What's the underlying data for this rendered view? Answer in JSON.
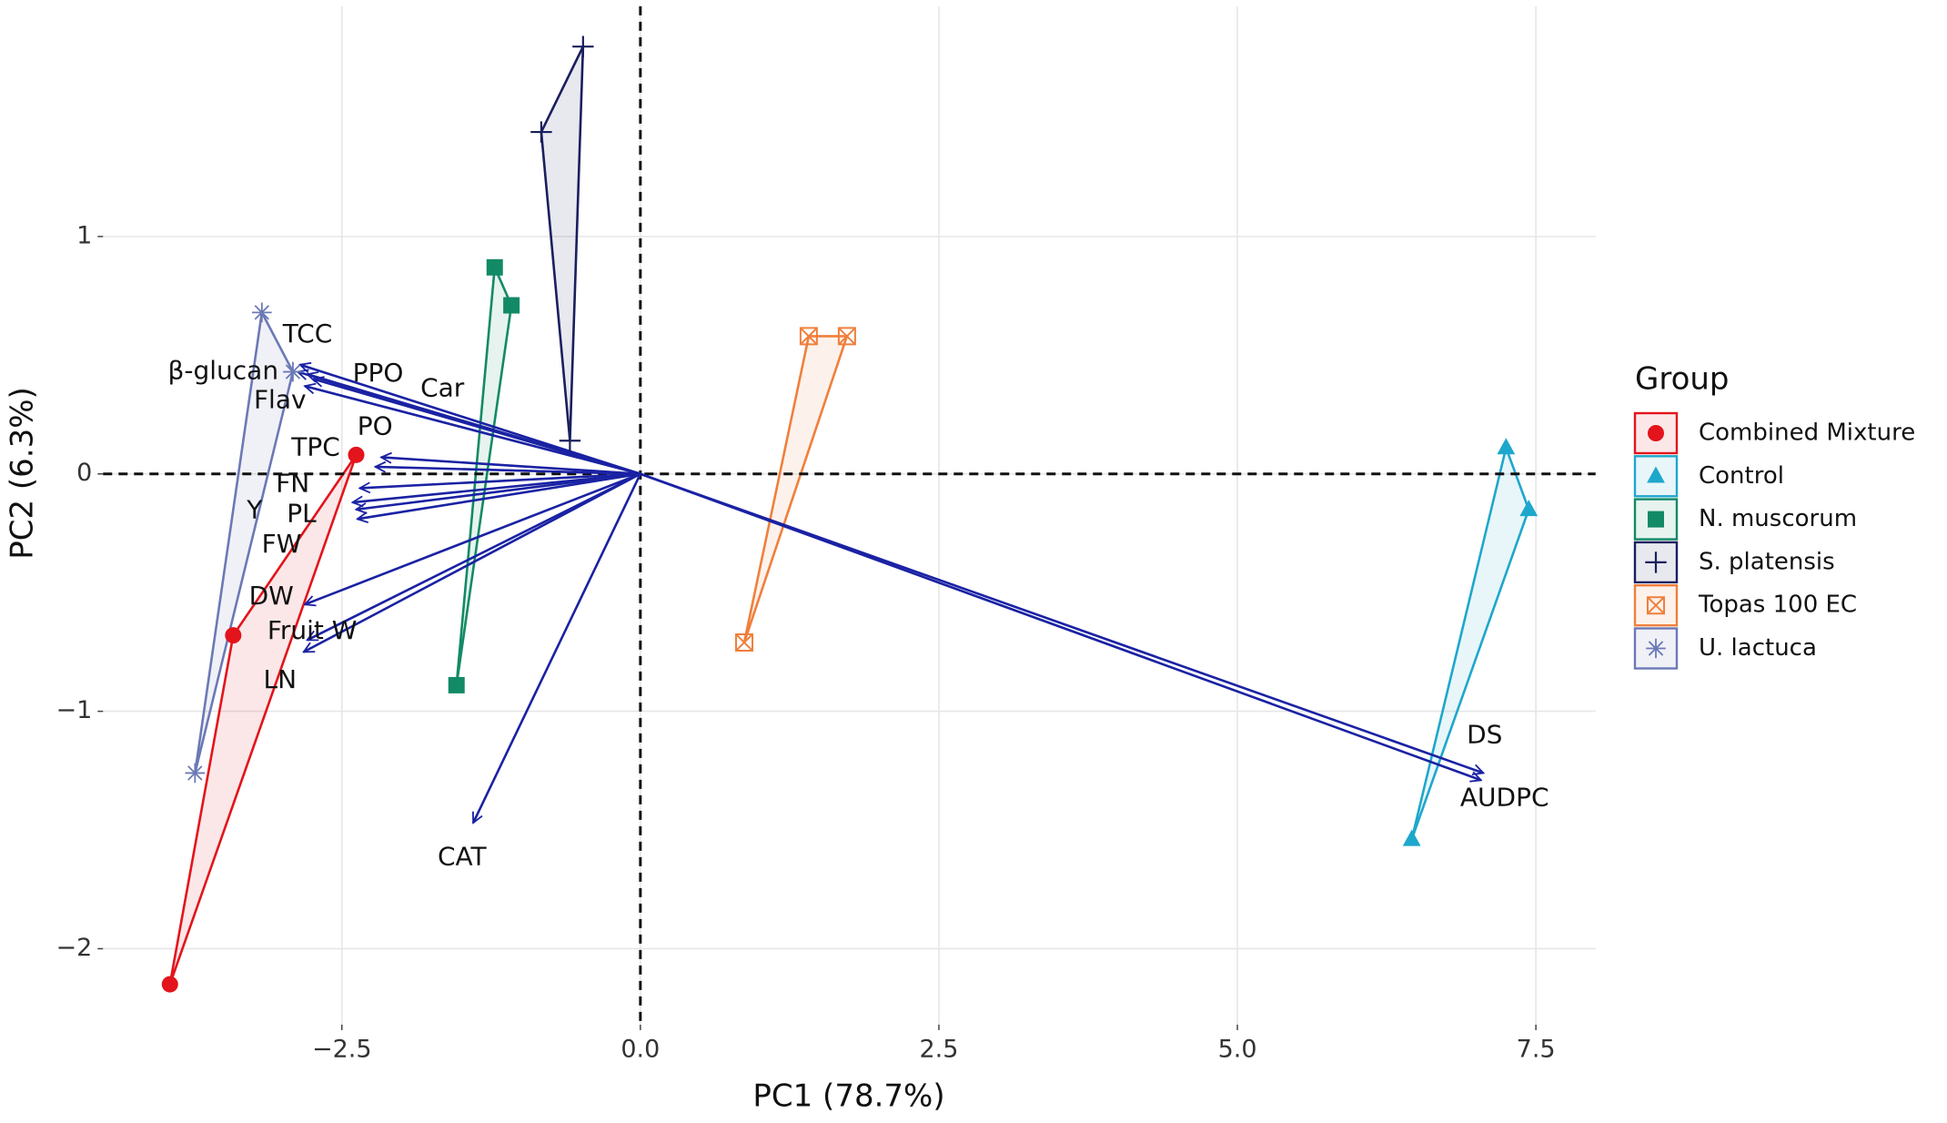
{
  "chart_data": {
    "type": "biplot",
    "x_label": "PC1 (78.7%)",
    "y_label": "PC2 (6.3%)",
    "xlim": [
      -4.5,
      8.0
    ],
    "ylim": [
      -2.32,
      1.97
    ],
    "xticks": [
      {
        "value": -2.5,
        "label": "−2.5"
      },
      {
        "value": 0,
        "label": "0.0"
      },
      2.5,
      {
        "value": 5,
        "label": "5.0"
      },
      7.5
    ],
    "yticks": [
      {
        "value": -2,
        "label": "−2"
      },
      {
        "value": -1,
        "label": "−1"
      },
      0,
      1
    ],
    "grid": true,
    "reference_lines": {
      "x": 0,
      "y": 0
    },
    "legend_title": "Group",
    "legend_position": "right",
    "loading_color": "#1a22a3",
    "series": [
      {
        "name": "Combined Mixture",
        "color": "#e3141b",
        "marker": "circle",
        "x": [
          -2.38,
          -3.41,
          -3.94
        ],
        "y": [
          0.08,
          -0.68,
          -2.15
        ]
      },
      {
        "name": "Control",
        "color": "#1ea7cc",
        "marker": "triangle",
        "x": [
          7.25,
          7.44,
          6.46
        ],
        "y": [
          0.11,
          -0.15,
          -1.54
        ]
      },
      {
        "name": "N. muscorum",
        "color": "#128a66",
        "marker": "square",
        "x": [
          -1.22,
          -1.08,
          -1.54
        ],
        "y": [
          0.87,
          0.71,
          -0.89
        ]
      },
      {
        "name": "S. platensis",
        "color": "#1a1f5e",
        "marker": "plus",
        "x": [
          -0.48,
          -0.83,
          -0.59
        ],
        "y": [
          1.8,
          1.44,
          0.14
        ]
      },
      {
        "name": "Topas 100 EC",
        "color": "#f07f3c",
        "marker": "boxx",
        "x": [
          1.41,
          1.73,
          0.87
        ],
        "y": [
          0.58,
          0.58,
          -0.71
        ]
      },
      {
        "name": "U. lactuca",
        "color": "#6b79b5",
        "marker": "asterisk",
        "x": [
          -3.17,
          -3.73,
          -2.91
        ],
        "y": [
          0.68,
          -1.26,
          0.43
        ]
      }
    ],
    "loadings": [
      {
        "name": "TCC",
        "x": -2.85,
        "y": 0.46
      },
      {
        "name": "β-glucan",
        "x": -2.87,
        "y": 0.43
      },
      {
        "name": "PPO",
        "x": -2.79,
        "y": 0.42
      },
      {
        "name": "Car",
        "x": -2.74,
        "y": 0.4
      },
      {
        "name": "Flav",
        "x": -2.81,
        "y": 0.37
      },
      {
        "name": "PO",
        "x": -2.17,
        "y": 0.07
      },
      {
        "name": "TPC",
        "x": -2.22,
        "y": 0.03
      },
      {
        "name": "FN",
        "x": -2.35,
        "y": -0.06
      },
      {
        "name": "Y",
        "x": -2.41,
        "y": -0.12
      },
      {
        "name": "PL",
        "x": -2.38,
        "y": -0.15
      },
      {
        "name": "FW",
        "x": -2.37,
        "y": -0.19
      },
      {
        "name": "DW",
        "x": -2.81,
        "y": -0.55
      },
      {
        "name": "Fruit W",
        "x": -2.79,
        "y": -0.7
      },
      {
        "name": "LN",
        "x": -2.82,
        "y": -0.75
      },
      {
        "name": "CAT",
        "x": -1.4,
        "y": -1.47
      },
      {
        "name": "DS",
        "x": 7.06,
        "y": -1.26
      },
      {
        "name": "AUDPC",
        "x": 7.04,
        "y": -1.29
      }
    ]
  }
}
